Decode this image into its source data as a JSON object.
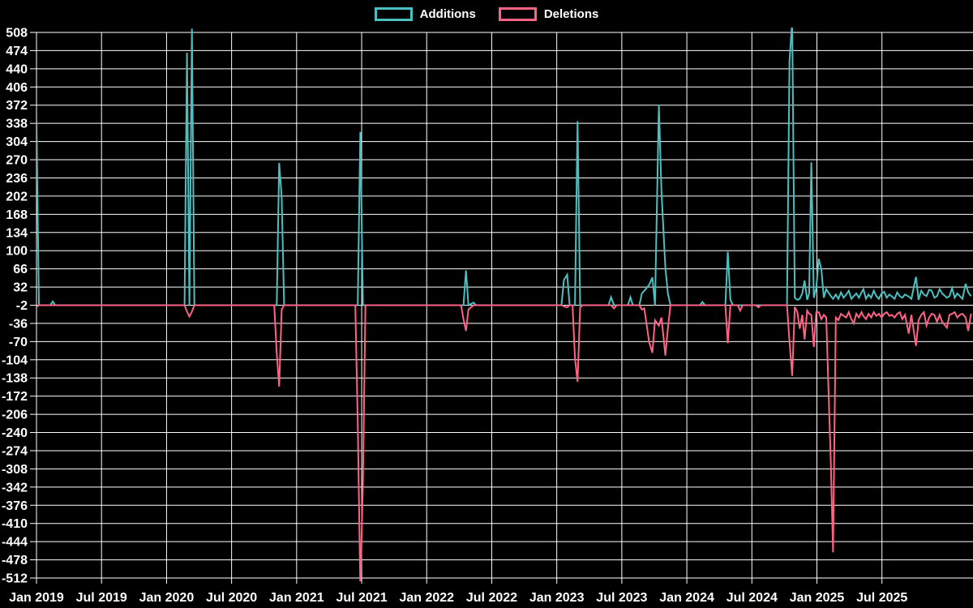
{
  "page": {
    "background": "#000000"
  },
  "legend": {
    "items": [
      {
        "label": "Additions",
        "color": "#4BC0C0"
      },
      {
        "label": "Deletions",
        "color": "#FF6384"
      }
    ]
  },
  "chart_data": {
    "type": "line",
    "title": "",
    "xlabel": "",
    "ylabel": "",
    "grid": true,
    "legend_position": "top",
    "colors": {
      "background": "#000000",
      "grid": "#ffffff",
      "text": "#ffffff"
    },
    "series_names": [
      "Additions",
      "Deletions"
    ],
    "series_colors": [
      "#4BC0C0",
      "#FF6384"
    ],
    "y_axis": {
      "range": [
        -512,
        508
      ],
      "ticks": [
        508,
        474,
        440,
        406,
        372,
        338,
        304,
        270,
        236,
        202,
        168,
        134,
        100,
        66,
        32,
        -2,
        -36,
        -70,
        -104,
        -138,
        -172,
        -206,
        -240,
        -274,
        -308,
        -342,
        -376,
        -410,
        -444,
        -478,
        -512
      ]
    },
    "x_axis": {
      "range": [
        2019.0,
        2026.2
      ],
      "ticks": [
        {
          "label": "Jan 2019",
          "x": 2019.0
        },
        {
          "label": "Jul 2019",
          "x": 2019.5
        },
        {
          "label": "Jan 2020",
          "x": 2020.0
        },
        {
          "label": "Jul 2020",
          "x": 2020.5
        },
        {
          "label": "Jan 2021",
          "x": 2021.0
        },
        {
          "label": "Jul 2021",
          "x": 2021.5
        },
        {
          "label": "Jan 2022",
          "x": 2022.0
        },
        {
          "label": "Jul 2022",
          "x": 2022.5
        },
        {
          "label": "Jan 2023",
          "x": 2023.0
        },
        {
          "label": "Jul 2023",
          "x": 2023.5
        },
        {
          "label": "Jan 2024",
          "x": 2024.0
        },
        {
          "label": "Jul 2024",
          "x": 2024.5
        },
        {
          "label": "Jan 2025",
          "x": 2025.0
        },
        {
          "label": "Jul 2025",
          "x": 2025.5
        }
      ]
    },
    "baseline": -2,
    "x_step": 0.019,
    "points_format": [
      "x_decimal_year",
      "additions",
      "deletions"
    ],
    "points": [
      [
        2019.0,
        345,
        -5
      ],
      [
        2019.125,
        5,
        -2
      ],
      [
        2020.157,
        470,
        -14
      ],
      [
        2020.176,
        -2,
        -23
      ],
      [
        2020.195,
        515,
        -14
      ],
      [
        2020.847,
        -2,
        -92
      ],
      [
        2020.866,
        264,
        -154
      ],
      [
        2020.885,
        200,
        -10
      ],
      [
        2021.47,
        -2,
        -220
      ],
      [
        2021.49,
        322,
        -530
      ],
      [
        2021.51,
        -2,
        -332
      ],
      [
        2022.283,
        -2,
        -28
      ],
      [
        2022.302,
        63,
        -50
      ],
      [
        2022.321,
        -2,
        -10
      ],
      [
        2022.36,
        3,
        -2
      ],
      [
        2023.055,
        45,
        -4
      ],
      [
        2023.08,
        55,
        -6
      ],
      [
        2023.14,
        -2,
        -101
      ],
      [
        2023.16,
        342,
        -145
      ],
      [
        2023.18,
        -2,
        -6
      ],
      [
        2023.417,
        13,
        -2
      ],
      [
        2023.44,
        -2,
        -8
      ],
      [
        2023.566,
        13,
        -2
      ],
      [
        2023.654,
        20,
        -10
      ],
      [
        2023.673,
        25,
        -8
      ],
      [
        2023.71,
        36,
        -71
      ],
      [
        2023.735,
        50,
        -91
      ],
      [
        2023.755,
        -2,
        -30
      ],
      [
        2023.785,
        372,
        -40
      ],
      [
        2023.805,
        210,
        -25
      ],
      [
        2023.835,
        68,
        -96
      ],
      [
        2023.854,
        20,
        -45
      ],
      [
        2023.874,
        -2,
        -2
      ],
      [
        2024.12,
        4,
        -2
      ],
      [
        2024.315,
        98,
        -73
      ],
      [
        2024.335,
        8,
        -2
      ],
      [
        2024.41,
        -2,
        -12
      ],
      [
        2024.55,
        -2,
        -6
      ],
      [
        2024.789,
        455,
        -70
      ],
      [
        2024.81,
        530,
        -134
      ],
      [
        2024.83,
        12,
        -5
      ],
      [
        2024.85,
        8,
        -15
      ],
      [
        2024.868,
        10,
        -46
      ],
      [
        2024.887,
        20,
        -20
      ],
      [
        2024.905,
        44,
        -66
      ],
      [
        2024.925,
        8,
        -12
      ],
      [
        2024.94,
        20,
        -18
      ],
      [
        2024.957,
        265,
        -20
      ],
      [
        2024.976,
        12,
        -80
      ],
      [
        2024.995,
        30,
        -15
      ],
      [
        2025.014,
        85,
        -15
      ],
      [
        2025.034,
        65,
        -28
      ],
      [
        2025.053,
        12,
        -20
      ],
      [
        2025.072,
        28,
        -25
      ],
      [
        2025.107,
        15,
        -299
      ],
      [
        2025.124,
        10,
        -464
      ],
      [
        2025.145,
        18,
        -25
      ],
      [
        2025.165,
        10,
        -30
      ],
      [
        2025.185,
        22,
        -18
      ],
      [
        2025.205,
        12,
        -22
      ],
      [
        2025.225,
        18,
        -25
      ],
      [
        2025.245,
        25,
        -15
      ],
      [
        2025.265,
        10,
        -28
      ],
      [
        2025.283,
        15,
        -36
      ],
      [
        2025.303,
        20,
        -18
      ],
      [
        2025.323,
        12,
        -25
      ],
      [
        2025.343,
        22,
        -15
      ],
      [
        2025.357,
        28,
        -22
      ],
      [
        2025.377,
        10,
        -28
      ],
      [
        2025.397,
        18,
        -18
      ],
      [
        2025.417,
        12,
        -25
      ],
      [
        2025.437,
        25,
        -15
      ],
      [
        2025.457,
        15,
        -22
      ],
      [
        2025.477,
        10,
        -18
      ],
      [
        2025.497,
        20,
        -25
      ],
      [
        2025.517,
        23,
        -18
      ],
      [
        2025.537,
        12,
        -15
      ],
      [
        2025.557,
        18,
        -22
      ],
      [
        2025.577,
        14,
        -20
      ],
      [
        2025.597,
        10,
        -25
      ],
      [
        2025.617,
        22,
        -18
      ],
      [
        2025.637,
        15,
        -15
      ],
      [
        2025.657,
        12,
        -28
      ],
      [
        2025.677,
        18,
        -20
      ],
      [
        2025.706,
        14,
        -55
      ],
      [
        2025.726,
        10,
        -20
      ],
      [
        2025.762,
        51,
        -78
      ],
      [
        2025.782,
        8,
        -30
      ],
      [
        2025.802,
        25,
        -20
      ],
      [
        2025.822,
        18,
        -15
      ],
      [
        2025.843,
        15,
        -40
      ],
      [
        2025.863,
        27,
        -25
      ],
      [
        2025.883,
        25,
        -18
      ],
      [
        2025.903,
        12,
        -20
      ],
      [
        2025.923,
        15,
        -33
      ],
      [
        2025.943,
        28,
        -20
      ],
      [
        2025.963,
        20,
        -33
      ],
      [
        2025.999,
        12,
        -44
      ],
      [
        2026.019,
        15,
        -20
      ],
      [
        2026.039,
        30,
        -18
      ],
      [
        2026.059,
        12,
        -15
      ],
      [
        2026.079,
        20,
        -25
      ],
      [
        2026.099,
        15,
        -20
      ],
      [
        2026.119,
        10,
        -18
      ],
      [
        2026.143,
        38,
        -25
      ],
      [
        2026.163,
        22,
        -50
      ],
      [
        2026.185,
        15,
        -18
      ]
    ]
  }
}
